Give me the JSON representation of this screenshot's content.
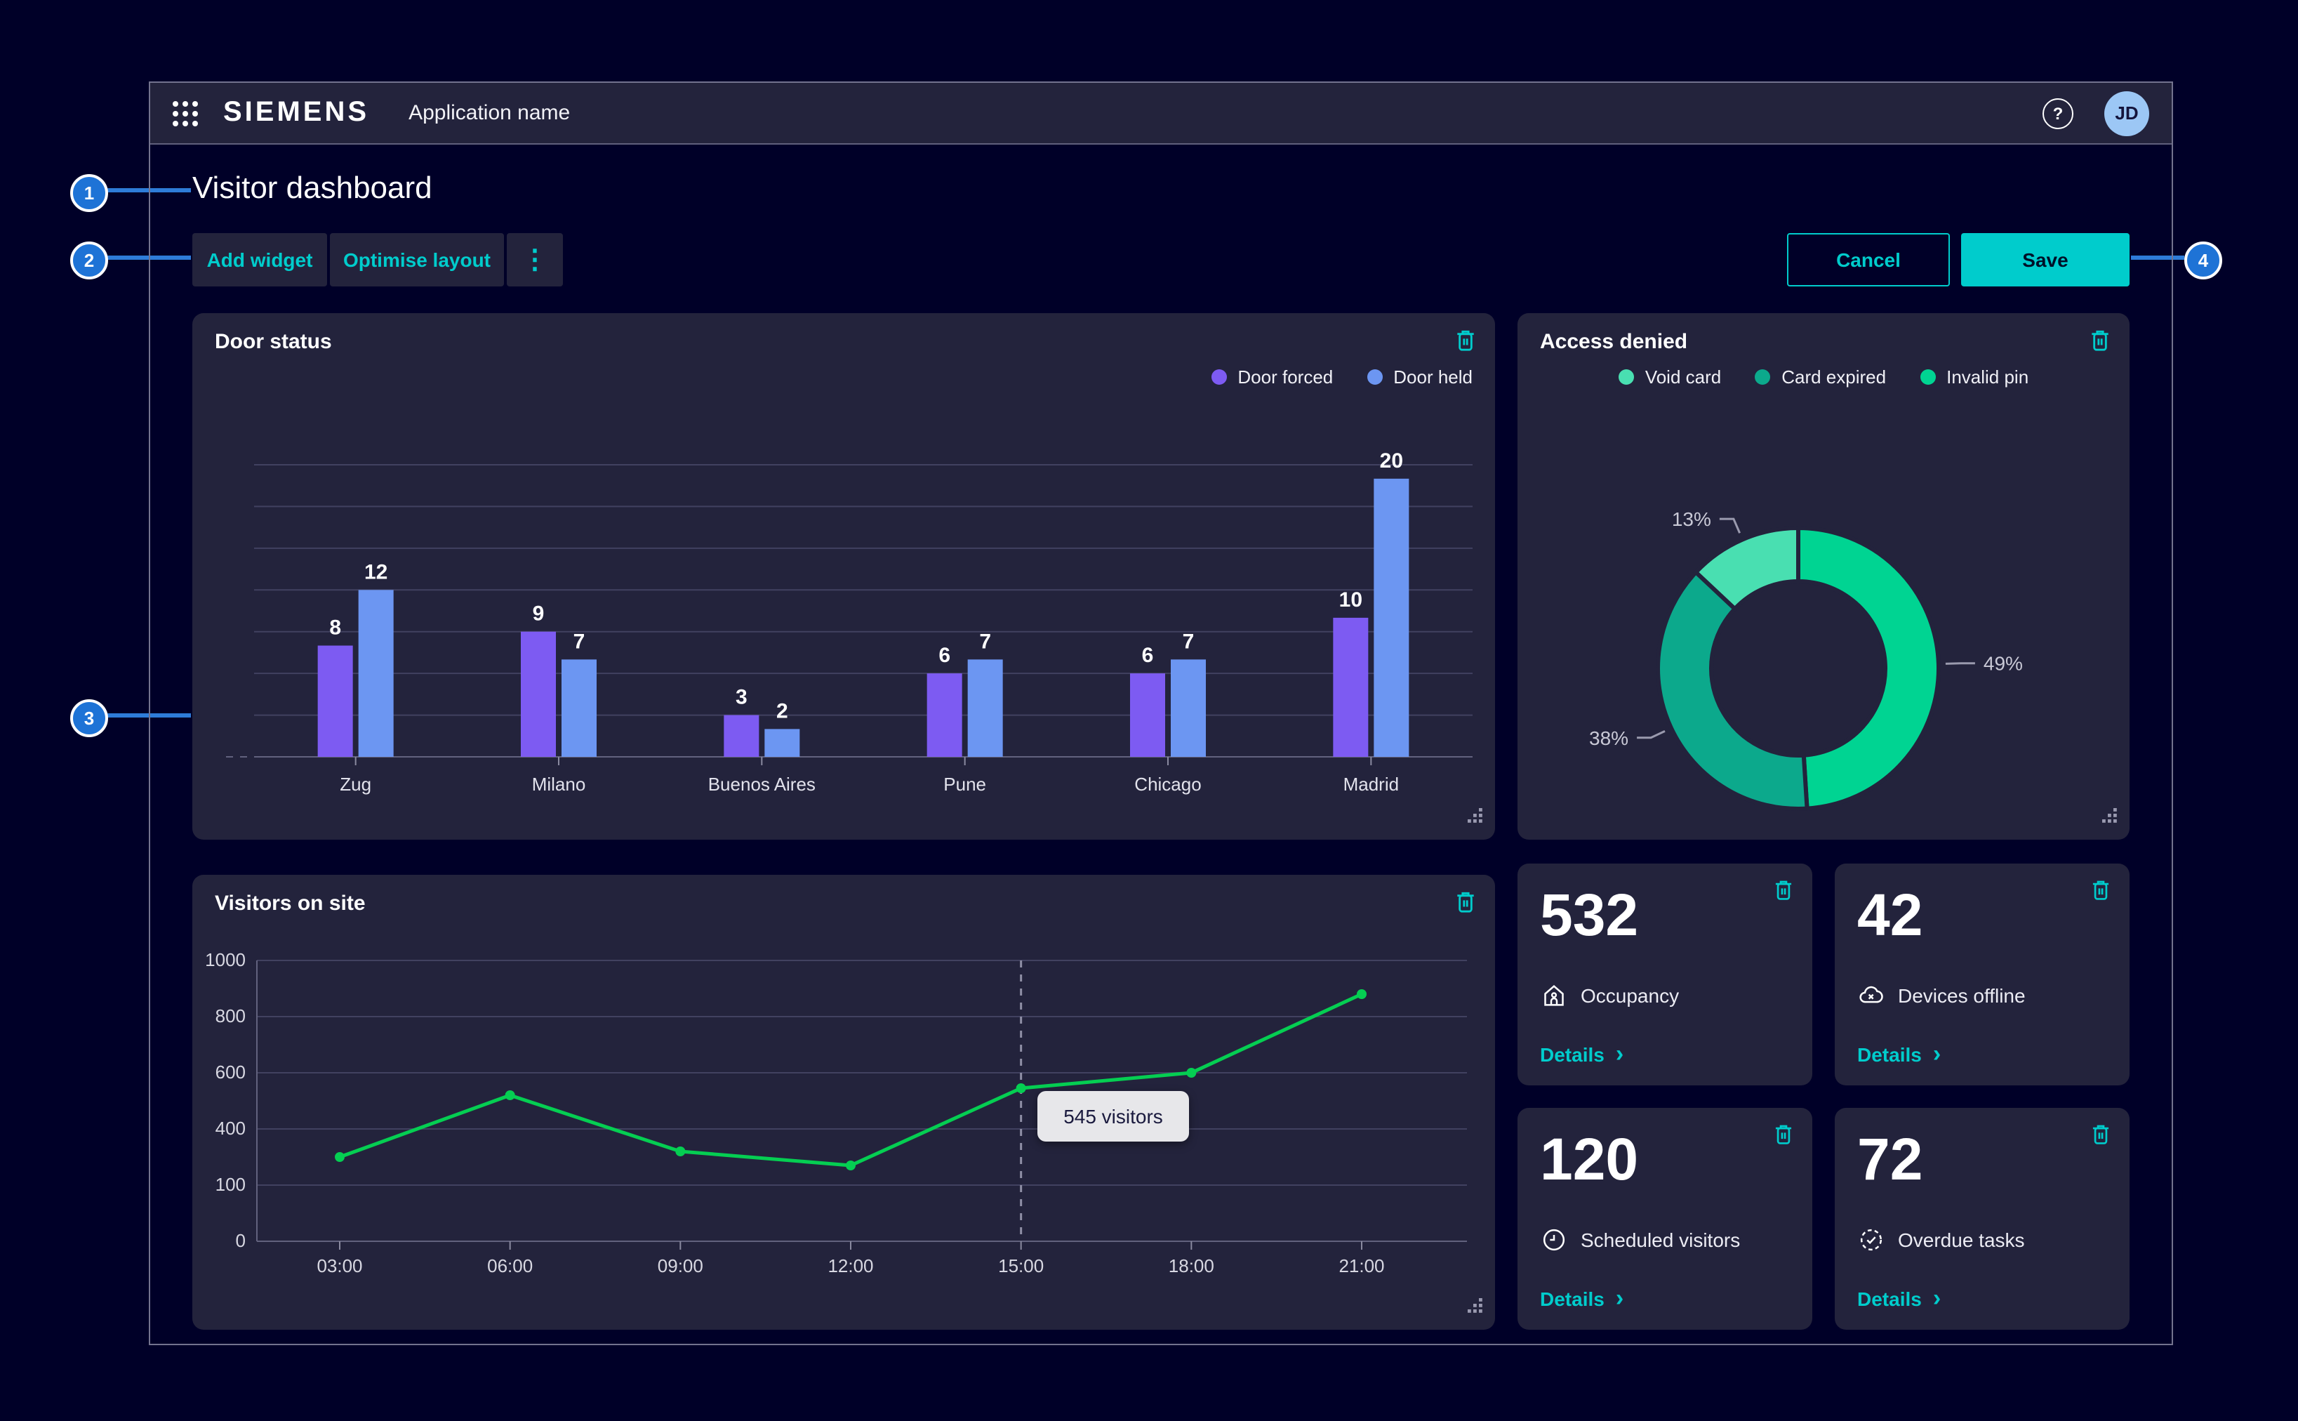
{
  "app": {
    "brand": "SIEMENS",
    "name": "Application name",
    "avatar": "JD",
    "help": "?"
  },
  "page": {
    "title": "Visitor dashboard"
  },
  "toolbar": {
    "add_widget": "Add widget",
    "optimise_layout": "Optimise layout",
    "more": "⋮",
    "cancel": "Cancel",
    "save": "Save"
  },
  "annotations": [
    "1",
    "2",
    "3",
    "4"
  ],
  "colors": {
    "accent": "#00CCCC",
    "annotation_blue": "#1E73D6",
    "panel": "#23233C",
    "page_bg": "#000028",
    "bar_purple": "#7D5BF2",
    "bar_blue": "#6C96F2",
    "donut_green": "#00D492",
    "donut_teal": "#0CA98C",
    "donut_mint": "#49DFB1",
    "line_green": "#05CE52",
    "avatar_bg": "#9CC7F5",
    "tooltip_bg": "#E7E7EA"
  },
  "widgets": {
    "door_status": {
      "title": "Door status"
    },
    "access_denied": {
      "title": "Access denied"
    },
    "visitors": {
      "title": "Visitors on site"
    },
    "kpis": [
      {
        "value": "532",
        "label": "Occupancy",
        "icon": "occupancy-icon",
        "details": "Details"
      },
      {
        "value": "42",
        "label": "Devices offline",
        "icon": "devices-offline-icon",
        "details": "Details"
      },
      {
        "value": "120",
        "label": "Scheduled visitors",
        "icon": "scheduled-visitors-icon",
        "details": "Details"
      },
      {
        "value": "72",
        "label": "Overdue tasks",
        "icon": "overdue-tasks-icon",
        "details": "Details"
      }
    ]
  },
  "chart_data": [
    {
      "type": "bar",
      "title": "Door status",
      "categories": [
        "Zug",
        "Milano",
        "Buenos Aires",
        "Pune",
        "Chicago",
        "Madrid"
      ],
      "series": [
        {
          "name": "Door forced",
          "color": "#7D5BF2",
          "values": [
            8,
            9,
            3,
            6,
            6,
            10
          ]
        },
        {
          "name": "Door held",
          "color": "#6C96F2",
          "values": [
            12,
            7,
            2,
            7,
            7,
            20
          ]
        }
      ],
      "ylim": [
        0,
        21
      ],
      "gridline_step": 3,
      "grid": "horizontal",
      "legend_position": "top-right",
      "value_labels": true
    },
    {
      "type": "pie",
      "title": "Access denied",
      "donut": true,
      "start_angle_deg": 0,
      "direction": "clockwise",
      "slices": [
        {
          "label": "Invalid pin",
          "value": 49,
          "color": "#00D492"
        },
        {
          "label": "Card expired",
          "value": 38,
          "color": "#0CA98C"
        },
        {
          "label": "Void card",
          "value": 13,
          "color": "#49DFB1"
        }
      ],
      "legend": [
        {
          "label": "Void card",
          "color": "#49DFB1"
        },
        {
          "label": "Card expired",
          "color": "#0CA98C"
        },
        {
          "label": "Invalid pin",
          "color": "#00D492"
        }
      ],
      "legend_position": "top-center"
    },
    {
      "type": "line",
      "title": "Visitors on site",
      "x": [
        "03:00",
        "06:00",
        "09:00",
        "12:00",
        "15:00",
        "18:00",
        "21:00"
      ],
      "values": [
        300,
        520,
        320,
        270,
        545,
        600,
        880
      ],
      "yticks_labels": [
        "1000",
        "800",
        "600",
        "400",
        "100",
        "0"
      ],
      "ylim": [
        0,
        1000
      ],
      "color": "#05CE52",
      "marker_x": "15:00",
      "tooltip": "545 visitors",
      "grid": "horizontal"
    }
  ]
}
